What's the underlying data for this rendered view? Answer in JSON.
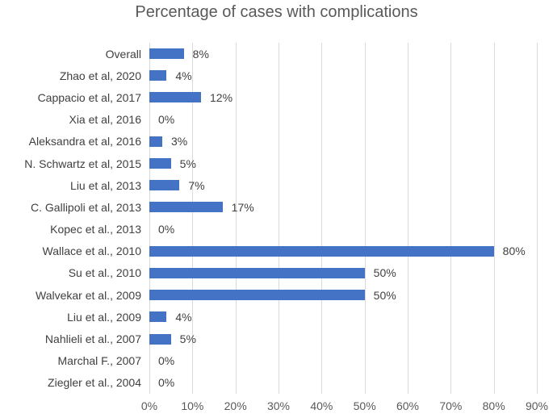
{
  "chart_data": {
    "type": "bar",
    "orientation": "horizontal",
    "title": "Percentage of cases with complications",
    "categories": [
      "Overall",
      "Zhao et al, 2020",
      "Cappacio et al, 2017",
      "Xia et al, 2016",
      "Aleksandra et al, 2016",
      "N. Schwartz et al, 2015",
      "Liu et al, 2013",
      "C. Gallipoli et al, 2013",
      "Kopec et al., 2013",
      "Wallace et al., 2010",
      "Su et al., 2010",
      "Walvekar et al., 2009",
      "Liu et al., 2009",
      "Nahlieli et al., 2007",
      "Marchal F., 2007",
      "Ziegler et al., 2004"
    ],
    "values": [
      8,
      4,
      12,
      0,
      3,
      5,
      7,
      17,
      0,
      80,
      50,
      50,
      4,
      5,
      0,
      0
    ],
    "value_labels": [
      "8%",
      "4%",
      "12%",
      "0%",
      "3%",
      "5%",
      "7%",
      "17%",
      "0%",
      "80%",
      "50%",
      "50%",
      "4%",
      "5%",
      "0%",
      "0%"
    ],
    "x_tick_labels": [
      "0%",
      "10%",
      "20%",
      "30%",
      "40%",
      "50%",
      "60%",
      "70%",
      "80%",
      "90%"
    ],
    "xlim": [
      0,
      90
    ],
    "grid": true,
    "legend": false,
    "colors": {
      "bar": "#4472C4",
      "gridline": "#D9D9D9",
      "title_text": "#595959",
      "axis_text": "#595959",
      "label_text": "#404040",
      "background": "#FFFFFF"
    }
  }
}
